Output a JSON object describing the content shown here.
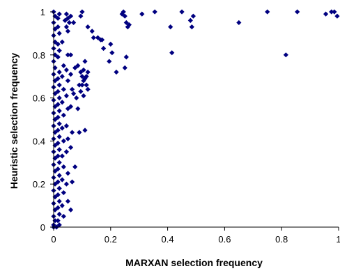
{
  "chart_data": {
    "type": "scatter",
    "title": "",
    "xlabel": "MARXAN selection frequency",
    "ylabel": "Heuristic selection frequency",
    "xlim": [
      0,
      1
    ],
    "ylim": [
      0,
      1
    ],
    "x_ticks": [
      "0",
      "0.2",
      "0.4",
      "0.6",
      "0.8",
      "1"
    ],
    "y_ticks": [
      "0",
      "0.2",
      "0.4",
      "0.6",
      "0.8",
      "1"
    ],
    "grid": false,
    "legend": "none",
    "marker": "diamond",
    "marker_color": "#000080",
    "series": [
      {
        "points": [
          [
            0.0,
            1.0
          ],
          [
            0.005,
            0.98
          ],
          [
            0.0,
            0.95
          ],
          [
            0.005,
            0.92
          ],
          [
            0.0,
            0.89
          ],
          [
            0.005,
            0.86
          ],
          [
            0.0,
            0.83
          ],
          [
            0.005,
            0.8
          ],
          [
            0.0,
            0.77
          ],
          [
            0.005,
            0.74
          ],
          [
            0.0,
            0.71
          ],
          [
            0.005,
            0.68
          ],
          [
            0.0,
            0.65
          ],
          [
            0.005,
            0.62
          ],
          [
            0.0,
            0.59
          ],
          [
            0.005,
            0.56
          ],
          [
            0.0,
            0.53
          ],
          [
            0.005,
            0.5
          ],
          [
            0.0,
            0.47
          ],
          [
            0.005,
            0.44
          ],
          [
            0.0,
            0.41
          ],
          [
            0.005,
            0.38
          ],
          [
            0.0,
            0.35
          ],
          [
            0.005,
            0.32
          ],
          [
            0.0,
            0.29
          ],
          [
            0.005,
            0.26
          ],
          [
            0.0,
            0.23
          ],
          [
            0.005,
            0.2
          ],
          [
            0.0,
            0.17
          ],
          [
            0.005,
            0.14
          ],
          [
            0.0,
            0.11
          ],
          [
            0.005,
            0.08
          ],
          [
            0.0,
            0.05
          ],
          [
            0.005,
            0.03
          ],
          [
            0.0,
            0.01
          ],
          [
            0.01,
            0.0
          ],
          [
            0.0,
            0.0
          ],
          [
            0.015,
            0.97
          ],
          [
            0.02,
            0.99
          ],
          [
            0.015,
            0.93
          ],
          [
            0.02,
            0.9
          ],
          [
            0.015,
            0.85
          ],
          [
            0.02,
            0.82
          ],
          [
            0.015,
            0.79
          ],
          [
            0.02,
            0.72
          ],
          [
            0.015,
            0.69
          ],
          [
            0.02,
            0.66
          ],
          [
            0.015,
            0.63
          ],
          [
            0.02,
            0.6
          ],
          [
            0.015,
            0.57
          ],
          [
            0.02,
            0.54
          ],
          [
            0.015,
            0.51
          ],
          [
            0.02,
            0.48
          ],
          [
            0.015,
            0.45
          ],
          [
            0.02,
            0.42
          ],
          [
            0.015,
            0.39
          ],
          [
            0.02,
            0.36
          ],
          [
            0.015,
            0.33
          ],
          [
            0.02,
            0.3
          ],
          [
            0.015,
            0.27
          ],
          [
            0.02,
            0.24
          ],
          [
            0.015,
            0.21
          ],
          [
            0.02,
            0.18
          ],
          [
            0.015,
            0.15
          ],
          [
            0.02,
            0.12
          ],
          [
            0.015,
            0.09
          ],
          [
            0.02,
            0.06
          ],
          [
            0.015,
            0.03
          ],
          [
            0.02,
            0.01
          ],
          [
            0.03,
            0.86
          ],
          [
            0.035,
            0.75
          ],
          [
            0.03,
            0.7
          ],
          [
            0.035,
            0.64
          ],
          [
            0.03,
            0.58
          ],
          [
            0.035,
            0.52
          ],
          [
            0.03,
            0.46
          ],
          [
            0.035,
            0.4
          ],
          [
            0.03,
            0.33
          ],
          [
            0.035,
            0.28
          ],
          [
            0.03,
            0.22
          ],
          [
            0.035,
            0.16
          ],
          [
            0.03,
            0.1
          ],
          [
            0.035,
            0.05
          ],
          [
            0.045,
            0.99
          ],
          [
            0.05,
            0.97
          ],
          [
            0.04,
            0.96
          ],
          [
            0.055,
            0.95
          ],
          [
            0.06,
            0.98
          ],
          [
            0.045,
            0.93
          ],
          [
            0.05,
            0.91
          ],
          [
            0.05,
            0.8
          ],
          [
            0.045,
            0.73
          ],
          [
            0.05,
            0.68
          ],
          [
            0.045,
            0.61
          ],
          [
            0.05,
            0.55
          ],
          [
            0.045,
            0.47
          ],
          [
            0.05,
            0.41
          ],
          [
            0.045,
            0.35
          ],
          [
            0.05,
            0.25
          ],
          [
            0.045,
            0.2
          ],
          [
            0.05,
            0.12
          ],
          [
            0.06,
            0.8
          ],
          [
            0.06,
            0.71
          ],
          [
            0.065,
            0.64
          ],
          [
            0.06,
            0.56
          ],
          [
            0.065,
            0.44
          ],
          [
            0.06,
            0.37
          ],
          [
            0.065,
            0.21
          ],
          [
            0.06,
            0.08
          ],
          [
            0.07,
            0.95
          ],
          [
            0.075,
            0.74
          ],
          [
            0.07,
            0.62
          ],
          [
            0.08,
            0.6
          ],
          [
            0.075,
            0.28
          ],
          [
            0.085,
            0.75
          ],
          [
            0.09,
            0.66
          ],
          [
            0.085,
            0.55
          ],
          [
            0.09,
            0.44
          ],
          [
            0.095,
            0.98
          ],
          [
            0.1,
            1.0
          ],
          [
            0.095,
            0.72
          ],
          [
            0.1,
            0.7
          ],
          [
            0.105,
            0.68
          ],
          [
            0.1,
            0.66
          ],
          [
            0.105,
            0.73
          ],
          [
            0.11,
            0.77
          ],
          [
            0.095,
            0.63
          ],
          [
            0.105,
            0.61
          ],
          [
            0.11,
            0.69
          ],
          [
            0.115,
            0.7
          ],
          [
            0.12,
            0.72
          ],
          [
            0.115,
            0.66
          ],
          [
            0.12,
            0.64
          ],
          [
            0.11,
            0.45
          ],
          [
            0.12,
            0.93
          ],
          [
            0.135,
            0.91
          ],
          [
            0.14,
            0.88
          ],
          [
            0.155,
            0.88
          ],
          [
            0.165,
            0.87
          ],
          [
            0.17,
            0.87
          ],
          [
            0.175,
            0.83
          ],
          [
            0.2,
            0.85
          ],
          [
            0.195,
            0.77
          ],
          [
            0.205,
            0.81
          ],
          [
            0.22,
            0.72
          ],
          [
            0.24,
            0.99
          ],
          [
            0.245,
            1.0
          ],
          [
            0.25,
            0.98
          ],
          [
            0.255,
            0.95
          ],
          [
            0.26,
            0.93
          ],
          [
            0.265,
            0.94
          ],
          [
            0.255,
            0.79
          ],
          [
            0.25,
            0.74
          ],
          [
            0.31,
            0.99
          ],
          [
            0.355,
            1.0
          ],
          [
            0.41,
            0.93
          ],
          [
            0.415,
            0.81
          ],
          [
            0.45,
            1.0
          ],
          [
            0.48,
            0.96
          ],
          [
            0.49,
            0.98
          ],
          [
            0.485,
            0.93
          ],
          [
            0.65,
            0.95
          ],
          [
            0.75,
            1.0
          ],
          [
            0.815,
            0.8
          ],
          [
            0.855,
            1.0
          ],
          [
            0.955,
            0.99
          ],
          [
            0.975,
            1.0
          ],
          [
            0.985,
            1.0
          ],
          [
            0.995,
            0.98
          ]
        ]
      }
    ]
  }
}
